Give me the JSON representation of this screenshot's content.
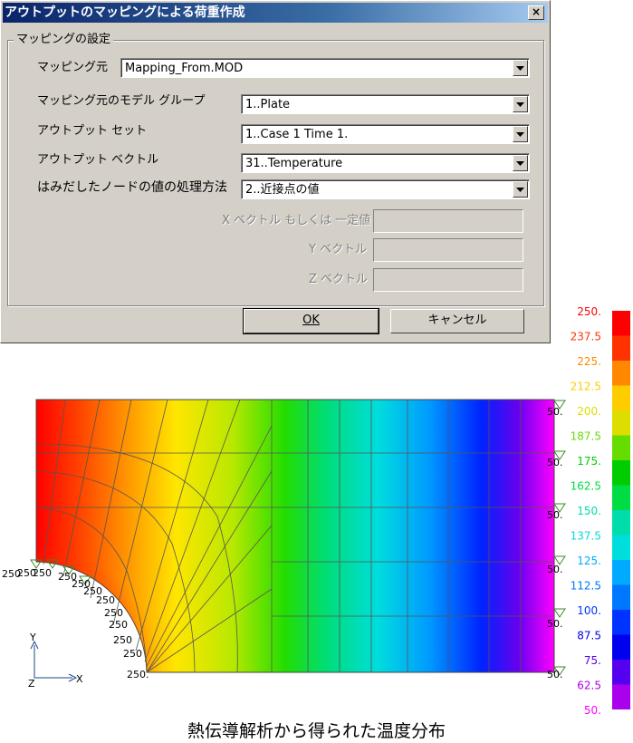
{
  "dialog": {
    "title": "アウトプットのマッピングによる荷重作成",
    "close_symbol": "×",
    "group_label": "マッピングの設定",
    "mapping_source_label": "マッピング元",
    "mapping_source_value": "Mapping_From.MOD",
    "model_group_label": "マッピング元のモデル グループ",
    "model_group_value": "1..Plate",
    "output_set_label": "アウトプット セット",
    "output_set_value": "1..Case 1 Time 1.",
    "output_vector_label": "アウトプット ベクトル",
    "output_vector_value": "31..Temperature",
    "outside_nodes_label": "はみだしたノードの値の処理方法",
    "outside_nodes_value": "2..近接点の値",
    "x_vector_label": "X ベクトル もしくは 一定値",
    "y_vector_label": "Y ベクトル",
    "z_vector_label": "Z ベクトル",
    "ok_label": "OK",
    "cancel_label": "キャンセル"
  },
  "legend_values": [
    {
      "text": "250.",
      "color": "#ff0000"
    },
    {
      "text": "237.5",
      "color": "#ff3300"
    },
    {
      "text": "225.",
      "color": "#ff8800"
    },
    {
      "text": "212.5",
      "color": "#ffcc00"
    },
    {
      "text": "200.",
      "color": "#dddd00"
    },
    {
      "text": "187.5",
      "color": "#66dd00"
    },
    {
      "text": "175.",
      "color": "#00cc00"
    },
    {
      "text": "162.5",
      "color": "#00dd44"
    },
    {
      "text": "150.",
      "color": "#00ddaa"
    },
    {
      "text": "137.5",
      "color": "#00dddd"
    },
    {
      "text": "125.",
      "color": "#00aaff"
    },
    {
      "text": "112.5",
      "color": "#0077ff"
    },
    {
      "text": "100.",
      "color": "#0033ff"
    },
    {
      "text": "87.5",
      "color": "#0000ee"
    },
    {
      "text": "75.",
      "color": "#5500ee"
    },
    {
      "text": "62.5",
      "color": "#aa00ee"
    },
    {
      "text": "50.",
      "color": "#ff00ff"
    }
  ],
  "boundary_left_values": [
    "250",
    "250",
    "250",
    "250",
    "250",
    "250",
    "250",
    "250",
    "250",
    "250",
    "250",
    "250."
  ],
  "boundary_right_values": [
    "50.",
    "50.",
    "50.",
    "50.",
    "50.",
    "50."
  ],
  "axis": {
    "y": "Y",
    "z": "Z",
    "x": "X"
  },
  "caption": "熱伝導解析から得られた温度分布"
}
